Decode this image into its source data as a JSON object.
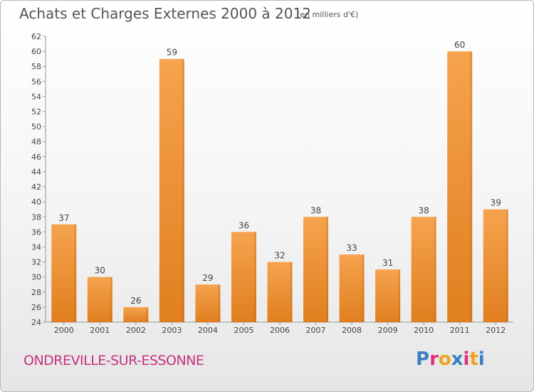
{
  "header": {
    "title": "Achats et Charges Externes 2000 à 2012",
    "unit_note": "(en milliers d'€)"
  },
  "footer": {
    "town": "ONDREVILLE-SUR-ESSONNE",
    "logo_text": "Proxiti"
  },
  "colors": {
    "bar_light": "#f6a34e",
    "bar_dark": "#e07f1f",
    "town": "#c8327d",
    "logo_letters": [
      "#3a7fc2",
      "#e0307a",
      "#f0a020",
      "#3a7fc2",
      "#e0307a",
      "#f0a020",
      "#3a7fc2"
    ]
  },
  "chart_data": {
    "type": "bar",
    "title": "Achats et Charges Externes 2000 à 2012",
    "categories": [
      "2000",
      "2001",
      "2002",
      "2003",
      "2004",
      "2005",
      "2006",
      "2007",
      "2008",
      "2009",
      "2010",
      "2011",
      "2012"
    ],
    "values": [
      37,
      30,
      26,
      59,
      29,
      36,
      32,
      38,
      33,
      31,
      38,
      60,
      39
    ],
    "ylim": [
      24,
      62
    ],
    "yticks": [
      24,
      26,
      28,
      30,
      32,
      34,
      36,
      38,
      40,
      42,
      44,
      46,
      48,
      50,
      52,
      54,
      56,
      58,
      60,
      62
    ],
    "grid": false,
    "xlabel": "",
    "ylabel": ""
  }
}
